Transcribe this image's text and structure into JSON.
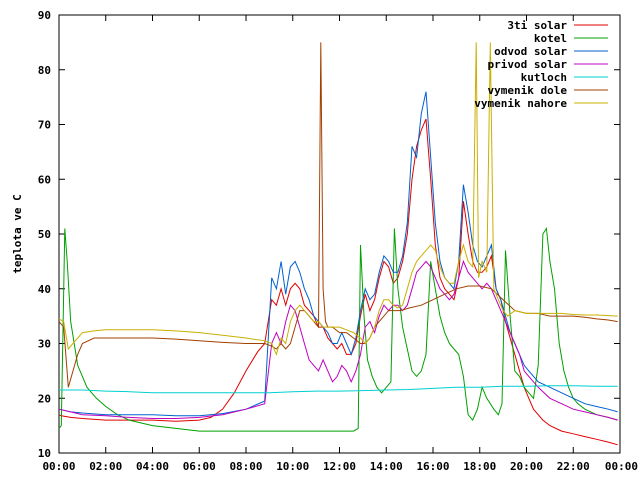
{
  "chart_data": {
    "type": "line",
    "title": "",
    "xlabel": "",
    "ylabel": "teplota ve C",
    "ylim": [
      10,
      90
    ],
    "xlim": [
      0,
      24
    ],
    "grid": false,
    "legend_position": "top-right",
    "x_tick_labels": [
      "00:00",
      "02:00",
      "04:00",
      "06:00",
      "08:00",
      "10:00",
      "12:00",
      "14:00",
      "16:00",
      "18:00",
      "20:00",
      "22:00",
      "00:00"
    ],
    "y_tick_labels": [
      "10",
      "20",
      "30",
      "40",
      "50",
      "60",
      "70",
      "80",
      "90"
    ],
    "series": [
      {
        "name": "3ti solar",
        "color": "#e00000",
        "x": [
          0,
          0.1,
          0.5,
          1,
          2,
          3,
          4,
          5,
          6,
          6.5,
          7,
          7.5,
          8,
          8.5,
          8.8,
          9.1,
          9.3,
          9.5,
          9.7,
          9.9,
          10.1,
          10.3,
          10.5,
          10.7,
          10.9,
          11.1,
          11.3,
          11.5,
          11.7,
          11.9,
          12.1,
          12.3,
          12.5,
          12.7,
          12.9,
          13.1,
          13.3,
          13.5,
          13.7,
          13.9,
          14.1,
          14.3,
          14.5,
          14.7,
          14.9,
          15.1,
          15.3,
          15.5,
          15.7,
          15.9,
          16.1,
          16.3,
          16.5,
          16.7,
          16.9,
          17.1,
          17.3,
          17.5,
          17.7,
          17.9,
          18.1,
          18.3,
          18.5,
          18.7,
          18.9,
          19.1,
          19.3,
          19.5,
          19.7,
          19.9,
          20.1,
          20.3,
          20.5,
          20.7,
          21,
          21.5,
          22,
          22.5,
          23,
          23.5,
          23.9
        ],
        "y": [
          17,
          16.8,
          16.5,
          16.3,
          16,
          16,
          16,
          15.8,
          16,
          16.5,
          18,
          21,
          25,
          28.5,
          30,
          38,
          37,
          40,
          37,
          40,
          41,
          40,
          37,
          36,
          35,
          33,
          33,
          31,
          30,
          29,
          30,
          28,
          28,
          30,
          35,
          39,
          36,
          38,
          42,
          45,
          44,
          41,
          42,
          45,
          50,
          60,
          66,
          69,
          71,
          60,
          48,
          42,
          40,
          39,
          38,
          42,
          56,
          50,
          45,
          43,
          43,
          44,
          46,
          40,
          38,
          34,
          31,
          28,
          25,
          22,
          20,
          18,
          17,
          16,
          15,
          14,
          13.5,
          13,
          12.5,
          12,
          11.5
        ]
      },
      {
        "name": "kotel",
        "color": "#00a000",
        "x": [
          0,
          0.1,
          0.25,
          0.35,
          0.5,
          0.8,
          1.2,
          1.6,
          2,
          2.5,
          3,
          4,
          5,
          6,
          7,
          8,
          9,
          10,
          11,
          12,
          12.6,
          12.8,
          12.9,
          13.05,
          13.2,
          13.4,
          13.6,
          13.8,
          14,
          14.2,
          14.35,
          14.5,
          14.7,
          14.9,
          15.1,
          15.3,
          15.5,
          15.7,
          15.9,
          16.1,
          16.3,
          16.5,
          16.7,
          16.9,
          17.1,
          17.3,
          17.5,
          17.7,
          17.9,
          18.1,
          18.3,
          18.6,
          18.8,
          18.95,
          19.1,
          19.3,
          19.5,
          19.7,
          19.9,
          20.1,
          20.3,
          20.5,
          20.7,
          20.85,
          21,
          21.2,
          21.4,
          21.6,
          21.8,
          22,
          22.2,
          22.5,
          23,
          23.5,
          23.9
        ],
        "y": [
          14.5,
          15,
          51,
          45,
          34,
          26,
          22,
          20,
          18.5,
          17,
          16,
          15,
          14.5,
          14,
          14,
          14,
          14,
          14,
          14,
          14,
          14,
          14.5,
          48,
          35,
          27,
          24,
          22,
          21,
          22,
          23,
          51,
          40,
          33,
          29,
          25,
          24,
          25,
          28,
          45,
          40,
          35,
          32,
          30,
          29,
          28,
          24,
          17,
          16,
          18,
          22,
          20,
          18,
          17,
          19,
          47,
          35,
          25,
          24,
          22,
          21,
          20,
          26,
          50,
          51,
          45,
          40,
          30,
          25,
          22,
          20,
          19,
          18,
          17,
          16.5,
          16
        ]
      },
      {
        "name": "odvod solar",
        "color": "#0060d0",
        "x": [
          0,
          0.5,
          1,
          2,
          3,
          4,
          5,
          6,
          7,
          8,
          8.8,
          9.1,
          9.3,
          9.5,
          9.7,
          9.9,
          10.1,
          10.3,
          10.5,
          10.7,
          10.9,
          11.1,
          11.3,
          11.5,
          11.7,
          11.9,
          12.1,
          12.3,
          12.5,
          12.7,
          12.9,
          13.1,
          13.3,
          13.5,
          13.7,
          13.9,
          14.1,
          14.3,
          14.5,
          14.7,
          14.9,
          15.1,
          15.3,
          15.5,
          15.7,
          15.9,
          16.1,
          16.3,
          16.5,
          16.7,
          16.9,
          17.1,
          17.3,
          17.5,
          17.7,
          17.9,
          18.1,
          18.3,
          18.5,
          18.7,
          18.9,
          19.1,
          19.3,
          19.5,
          19.7,
          19.9,
          20.1,
          20.5,
          21,
          21.5,
          22,
          22.5,
          23,
          23.5,
          23.9
        ],
        "y": [
          18,
          17.5,
          17.3,
          17,
          17,
          17,
          16.8,
          16.8,
          17.2,
          18,
          19.5,
          42,
          40,
          45,
          39,
          44,
          45,
          43,
          40,
          38,
          35,
          34,
          33,
          32,
          30,
          30,
          32,
          30,
          28,
          31,
          36,
          40,
          38,
          39,
          43,
          46,
          45,
          43,
          43,
          46,
          52,
          66,
          64,
          72,
          76,
          64,
          52,
          45,
          42,
          41,
          40,
          45,
          59,
          54,
          48,
          45,
          44,
          46,
          48,
          40,
          38,
          35,
          32,
          30,
          28,
          26,
          25,
          23,
          22,
          21,
          20,
          19,
          18.5,
          18,
          17.5
        ]
      },
      {
        "name": "privod solar",
        "color": "#c000c0",
        "x": [
          0,
          0.5,
          1,
          2,
          3,
          4,
          5,
          6,
          7,
          8,
          8.8,
          9.1,
          9.3,
          9.5,
          9.7,
          9.9,
          10.1,
          10.3,
          10.5,
          10.7,
          10.9,
          11.1,
          11.3,
          11.5,
          11.7,
          11.9,
          12.1,
          12.3,
          12.5,
          12.7,
          12.9,
          13.1,
          13.3,
          13.5,
          13.7,
          13.9,
          14.1,
          14.3,
          14.5,
          14.7,
          14.9,
          15.1,
          15.3,
          15.5,
          15.7,
          15.9,
          16.1,
          16.3,
          16.5,
          16.7,
          16.9,
          17.1,
          17.3,
          17.5,
          17.7,
          17.9,
          18.1,
          18.3,
          18.5,
          18.7,
          18.9,
          19.1,
          19.3,
          19.5,
          19.7,
          19.9,
          20.1,
          20.5,
          21,
          21.5,
          22,
          22.5,
          23,
          23.5,
          23.9
        ],
        "y": [
          18,
          17.5,
          17,
          16.8,
          16.5,
          16.3,
          16.3,
          16.5,
          17,
          18,
          19,
          30,
          32,
          30,
          34,
          37,
          36,
          33,
          30,
          27,
          26,
          25,
          27,
          25,
          23,
          24,
          26,
          25,
          23,
          25,
          28,
          33,
          34,
          32,
          35,
          37,
          36,
          37,
          37,
          36,
          37,
          40,
          43,
          44,
          45,
          44,
          42,
          40,
          39,
          38,
          39,
          42,
          45,
          43,
          42,
          41,
          40,
          41,
          40,
          38,
          36,
          34,
          32,
          30,
          28,
          25,
          24,
          22,
          20,
          19,
          18,
          17.5,
          17,
          16.5,
          16
        ]
      },
      {
        "name": "kutloch",
        "color": "#00d0d0",
        "x": [
          0,
          1,
          2,
          3,
          4,
          5,
          6,
          7,
          8,
          9,
          10,
          11,
          12,
          13,
          14,
          15,
          16,
          17,
          18,
          19,
          20,
          21,
          22,
          23,
          23.9
        ],
        "y": [
          21.5,
          21.5,
          21.3,
          21.2,
          21,
          21,
          21,
          21,
          21,
          21,
          21.2,
          21.3,
          21.3,
          21.4,
          21.5,
          21.6,
          21.8,
          22,
          22,
          22.2,
          22.2,
          22.3,
          22.3,
          22.2,
          22.2
        ]
      },
      {
        "name": "vymenik dole",
        "color": "#a04000",
        "x": [
          0,
          0.2,
          0.4,
          0.6,
          0.8,
          1,
          1.5,
          2,
          3,
          4,
          5,
          6,
          7,
          8,
          8.8,
          9.1,
          9.3,
          9.5,
          9.7,
          9.9,
          10.1,
          10.3,
          10.5,
          10.7,
          10.9,
          11.1,
          11.2,
          11.3,
          11.4,
          11.5,
          11.7,
          12,
          12.3,
          12.6,
          12.9,
          13.1,
          13.3,
          13.5,
          13.7,
          13.9,
          14.1,
          14.3,
          14.6,
          15,
          15.5,
          16,
          16.5,
          17,
          17.5,
          18,
          18.5,
          19,
          19.5,
          20,
          20.5,
          21,
          21.5,
          22,
          22.5,
          23,
          23.5,
          23.9
        ],
        "y": [
          34,
          33,
          22,
          25,
          28,
          30,
          31,
          31,
          31,
          31,
          30.8,
          30.5,
          30.2,
          30,
          30,
          29.5,
          29,
          30,
          29,
          30,
          33,
          36,
          36,
          35,
          34,
          33,
          85,
          40,
          34,
          33,
          33,
          32,
          32,
          31,
          30,
          30,
          31,
          33,
          34,
          35,
          36,
          36,
          36,
          36.5,
          37,
          38,
          39,
          40,
          40.5,
          40.5,
          40,
          38,
          36,
          35.5,
          35.5,
          35,
          35,
          35,
          34.8,
          34.5,
          34.3,
          34
        ]
      },
      {
        "name": "vymenik nahore",
        "color": "#c8b000",
        "x": [
          0,
          0.2,
          0.4,
          0.6,
          0.8,
          1,
          1.5,
          2,
          3,
          4,
          5,
          6,
          7,
          8,
          8.8,
          9.1,
          9.3,
          9.5,
          9.7,
          9.9,
          10.1,
          10.3,
          10.5,
          10.7,
          10.9,
          11.1,
          11.3,
          11.5,
          11.7,
          12,
          12.3,
          12.6,
          12.9,
          13.1,
          13.3,
          13.5,
          13.7,
          13.9,
          14.1,
          14.3,
          14.5,
          14.7,
          14.9,
          15.1,
          15.3,
          15.5,
          15.7,
          15.9,
          16.1,
          16.3,
          16.5,
          16.7,
          16.9,
          17.1,
          17.3,
          17.5,
          17.7,
          17.85,
          17.95,
          18.1,
          18.3,
          18.45,
          18.6,
          18.8,
          19,
          19.2,
          19.5,
          20,
          20.5,
          21,
          21.5,
          22,
          22.5,
          23,
          23.5,
          23.9
        ],
        "y": [
          34.5,
          34,
          29,
          30,
          31,
          32,
          32.3,
          32.5,
          32.5,
          32.5,
          32.3,
          32,
          31.5,
          31,
          30.5,
          30,
          28,
          31,
          30,
          34,
          36,
          37,
          36,
          35,
          34,
          34,
          33,
          33,
          33,
          33,
          32.5,
          32,
          31,
          30,
          31,
          33,
          36,
          38,
          38,
          37,
          36.5,
          37,
          40,
          43,
          45,
          46,
          47,
          48,
          47,
          44,
          42,
          41,
          41,
          45,
          48,
          45,
          44,
          85,
          42,
          45,
          43,
          85,
          40,
          38,
          36,
          35,
          36,
          35.5,
          35.5,
          35.5,
          35.5,
          35.3,
          35.2,
          35.2,
          35.1,
          35
        ]
      }
    ]
  }
}
